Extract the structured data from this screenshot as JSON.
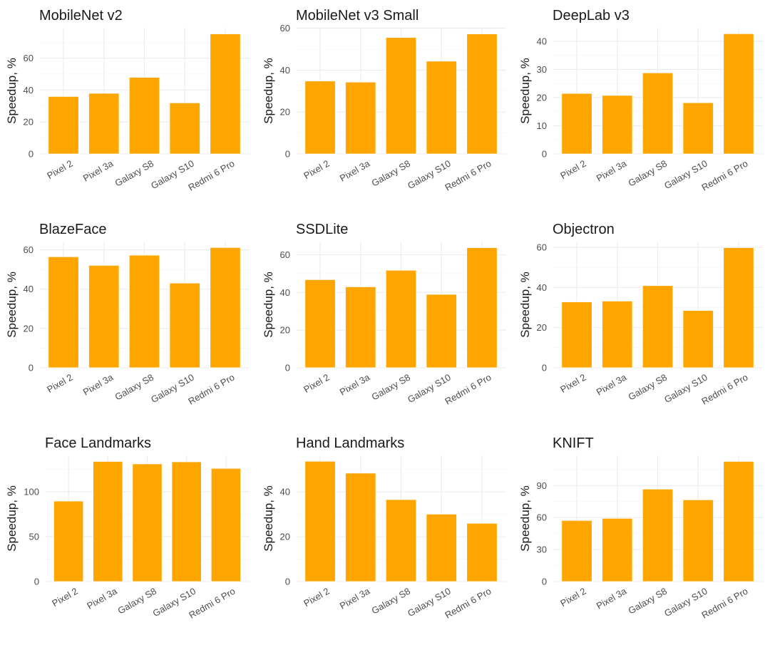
{
  "figure": {
    "bar_color": "#FFA500",
    "ylabel": "Speedup, %"
  },
  "chart_data": [
    {
      "type": "bar",
      "title": "MobileNet v2",
      "xlabel": "",
      "ylabel": "Speedup, %",
      "categories": [
        "Pixel 2",
        "Pixel 3a",
        "Galaxy S8",
        "Galaxy S10",
        "Redmi 6 Pro"
      ],
      "values": [
        36.0,
        38.0,
        48.0,
        32.0,
        75.2
      ],
      "ylim": [
        0,
        79
      ],
      "yticks": [
        0,
        20,
        40,
        60
      ],
      "grid": true
    },
    {
      "type": "bar",
      "title": "MobileNet v3 Small",
      "xlabel": "",
      "ylabel": "Speedup, %",
      "categories": [
        "Pixel 2",
        "Pixel 3a",
        "Galaxy S8",
        "Galaxy S10",
        "Redmi 6 Pro"
      ],
      "values": [
        34.8,
        34.3,
        55.6,
        44.3,
        57.3
      ],
      "ylim": [
        0,
        60.2
      ],
      "yticks": [
        0,
        20,
        40,
        60
      ],
      "grid": true
    },
    {
      "type": "bar",
      "title": "DeepLab v3",
      "xlabel": "",
      "ylabel": "Speedup, %",
      "categories": [
        "Pixel 2",
        "Pixel 3a",
        "Galaxy S8",
        "Galaxy S10",
        "Redmi 6 Pro"
      ],
      "values": [
        21.5,
        20.8,
        28.8,
        18.2,
        42.7
      ],
      "ylim": [
        0,
        44.8
      ],
      "yticks": [
        0,
        10,
        20,
        30,
        40
      ],
      "grid": true
    },
    {
      "type": "bar",
      "title": "BlazeFace",
      "xlabel": "",
      "ylabel": "Speedup, %",
      "categories": [
        "Pixel 2",
        "Pixel 3a",
        "Galaxy S8",
        "Galaxy S10",
        "Redmi 6 Pro"
      ],
      "values": [
        56.5,
        52.1,
        57.3,
        43.1,
        61.2
      ],
      "ylim": [
        0,
        64.2
      ],
      "yticks": [
        0,
        20,
        40,
        60
      ],
      "grid": true
    },
    {
      "type": "bar",
      "title": "SSDLite",
      "xlabel": "",
      "ylabel": "Speedup, %",
      "categories": [
        "Pixel 2",
        "Pixel 3a",
        "Galaxy S8",
        "Galaxy S10",
        "Redmi 6 Pro"
      ],
      "values": [
        46.8,
        43.0,
        51.8,
        39.0,
        63.8
      ],
      "ylim": [
        0,
        67
      ],
      "yticks": [
        0,
        20,
        40,
        60
      ],
      "grid": true
    },
    {
      "type": "bar",
      "title": "Objectron",
      "xlabel": "",
      "ylabel": "Speedup, %",
      "categories": [
        "Pixel 2",
        "Pixel 3a",
        "Galaxy S8",
        "Galaxy S10",
        "Redmi 6 Pro"
      ],
      "values": [
        32.8,
        33.2,
        40.9,
        28.5,
        59.8
      ],
      "ylim": [
        0,
        62.8
      ],
      "yticks": [
        0,
        20,
        40,
        60
      ],
      "grid": true
    },
    {
      "type": "bar",
      "title": "Face Landmarks",
      "xlabel": "",
      "ylabel": "Speedup, %",
      "categories": [
        "Pixel 2",
        "Pixel 3a",
        "Galaxy S8",
        "Galaxy S10",
        "Redmi 6 Pro"
      ],
      "values": [
        89.6,
        133.7,
        131.0,
        133.3,
        126.0
      ],
      "ylim": [
        0,
        140.4
      ],
      "yticks": [
        0,
        50,
        100
      ],
      "grid": true
    },
    {
      "type": "bar",
      "title": "Hand Landmarks",
      "xlabel": "",
      "ylabel": "Speedup, %",
      "categories": [
        "Pixel 2",
        "Pixel 3a",
        "Galaxy S8",
        "Galaxy S10",
        "Redmi 6 Pro"
      ],
      "values": [
        53.7,
        48.4,
        36.6,
        30.1,
        26.0
      ],
      "ylim": [
        0,
        56.3
      ],
      "yticks": [
        0,
        20,
        40
      ],
      "grid": true
    },
    {
      "type": "bar",
      "title": "KNIFT",
      "xlabel": "",
      "ylabel": "Speedup, %",
      "categories": [
        "Pixel 2",
        "Pixel 3a",
        "Galaxy S8",
        "Galaxy S10",
        "Redmi 6 Pro"
      ],
      "values": [
        57.3,
        59.3,
        86.7,
        76.7,
        112.7
      ],
      "ylim": [
        0,
        118.3
      ],
      "yticks": [
        0,
        30,
        60,
        90
      ],
      "grid": true
    }
  ]
}
